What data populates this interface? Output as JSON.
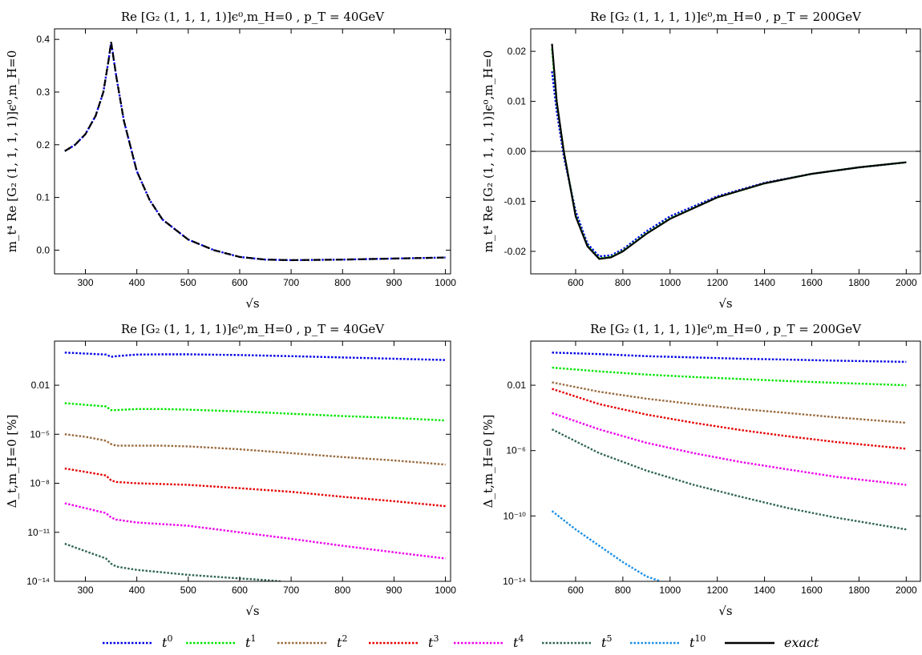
{
  "colors": {
    "t0": "#0000e6",
    "t1": "#00e600",
    "t2": "#9a6a3e",
    "t3": "#e60000",
    "t4": "#ee00ee",
    "t5": "#2f6650",
    "t10": "#1a8fe6",
    "exact": "#000000"
  },
  "legend": [
    {
      "key": "t0",
      "base": "t",
      "sup": "0",
      "style": "dotted"
    },
    {
      "key": "t1",
      "base": "t",
      "sup": "1",
      "style": "dotted"
    },
    {
      "key": "t2",
      "base": "t",
      "sup": "2",
      "style": "dotted"
    },
    {
      "key": "t3",
      "base": "t",
      "sup": "3",
      "style": "dotted"
    },
    {
      "key": "t4",
      "base": "t",
      "sup": "4",
      "style": "dotted"
    },
    {
      "key": "t5",
      "base": "t",
      "sup": "5",
      "style": "dotted"
    },
    {
      "key": "t10",
      "base": "t",
      "sup": "10",
      "style": "dotted"
    },
    {
      "key": "exact",
      "base": "exact",
      "sup": "",
      "style": "solid"
    }
  ],
  "chart_data": [
    {
      "type": "line",
      "title": "Re [G₂ (1, 1, 1, 1)]ϵ⁰,m_H=0 , p_T = 40GeV",
      "xlabel": "√s",
      "ylabel": "m_t⁴ Re [G₂ (1, 1, 1, 1)]ϵ⁰,m_H=0",
      "xlim": [
        240,
        1010
      ],
      "ylim": [
        -0.045,
        0.42
      ],
      "yscale": "linear",
      "xticks": [
        300,
        400,
        500,
        600,
        700,
        800,
        900,
        1000
      ],
      "yticks": [
        {
          "v": 0.0,
          "label": "0.0"
        },
        {
          "v": 0.1,
          "label": "0.1"
        },
        {
          "v": 0.2,
          "label": "0.2"
        },
        {
          "v": 0.3,
          "label": "0.3"
        },
        {
          "v": 0.4,
          "label": "0.4"
        }
      ],
      "series": [
        {
          "name": "exact",
          "x": [
            260,
            280,
            300,
            320,
            335,
            345,
            350,
            360,
            375,
            400,
            425,
            450,
            500,
            550,
            600,
            650,
            700,
            800,
            900,
            1000
          ],
          "y": [
            0.188,
            0.2,
            0.22,
            0.255,
            0.3,
            0.36,
            0.395,
            0.33,
            0.245,
            0.15,
            0.095,
            0.058,
            0.02,
            0.0,
            -0.013,
            -0.018,
            -0.019,
            -0.018,
            -0.016,
            -0.014
          ]
        },
        {
          "name": "t0",
          "x": [
            260,
            280,
            300,
            320,
            335,
            345,
            350,
            360,
            375,
            400,
            425,
            450,
            500,
            550,
            600,
            650,
            700,
            800,
            900,
            1000
          ],
          "y": [
            0.188,
            0.2,
            0.22,
            0.255,
            0.3,
            0.36,
            0.395,
            0.33,
            0.245,
            0.15,
            0.095,
            0.058,
            0.02,
            0.0,
            -0.013,
            -0.018,
            -0.019,
            -0.018,
            -0.016,
            -0.014
          ]
        }
      ]
    },
    {
      "type": "line",
      "title": "Re [G₂ (1, 1, 1, 1)]ϵ⁰,m_H=0 , p_T = 200GeV",
      "xlabel": "√s",
      "ylabel": "m_t⁴ Re [G₂ (1, 1, 1, 1)]ϵ⁰,m_H=0",
      "xlim": [
        410,
        2060
      ],
      "ylim": [
        -0.0245,
        0.0245
      ],
      "yscale": "linear",
      "xticks": [
        600,
        800,
        1000,
        1200,
        1400,
        1600,
        1800,
        2000
      ],
      "yticks": [
        {
          "v": -0.02,
          "label": "-0.02"
        },
        {
          "v": -0.01,
          "label": "-0.01"
        },
        {
          "v": 0.0,
          "label": "0.00"
        },
        {
          "v": 0.01,
          "label": "0.01"
        },
        {
          "v": 0.02,
          "label": "0.02"
        }
      ],
      "zero_line": true,
      "series": [
        {
          "name": "exact",
          "x": [
            500,
            520,
            550,
            600,
            650,
            700,
            750,
            800,
            900,
            1000,
            1200,
            1400,
            1600,
            1800,
            2000
          ],
          "y": [
            0.0215,
            0.01,
            0.0,
            -0.013,
            -0.019,
            -0.0215,
            -0.0212,
            -0.02,
            -0.0165,
            -0.0135,
            -0.0092,
            -0.0064,
            -0.0045,
            -0.0032,
            -0.0022
          ]
        },
        {
          "name": "t0",
          "x": [
            500,
            520,
            550,
            600,
            650,
            700,
            750,
            800,
            900,
            1000,
            1200,
            1400,
            1600,
            1800,
            2000
          ],
          "y": [
            0.016,
            0.008,
            -0.001,
            -0.012,
            -0.0185,
            -0.021,
            -0.0208,
            -0.0196,
            -0.016,
            -0.013,
            -0.009,
            -0.0063,
            -0.0045,
            -0.0032,
            -0.0022
          ]
        },
        {
          "name": "t1",
          "x": [
            500,
            520,
            550,
            600,
            650,
            700,
            750,
            800,
            900,
            1000,
            1200,
            1400,
            1600,
            1800,
            2000
          ],
          "y": [
            0.0205,
            0.0097,
            0.0,
            -0.0128,
            -0.0189,
            -0.0214,
            -0.0211,
            -0.0199,
            -0.0164,
            -0.0134,
            -0.0092,
            -0.0064,
            -0.0045,
            -0.0032,
            -0.0022
          ]
        }
      ]
    },
    {
      "type": "line",
      "title": "Re [G₂ (1, 1, 1, 1)]ϵ⁰,m_H=0 , p_T = 40GeV",
      "xlabel": "√s",
      "ylabel": "Δ_t,m_H=0 [%]",
      "xlim": [
        240,
        1010
      ],
      "ylim": [
        1e-14,
        5
      ],
      "yscale": "log",
      "xticks": [
        300,
        400,
        500,
        600,
        700,
        800,
        900,
        1000
      ],
      "yticks": [
        {
          "v": 1e-14,
          "label": "10⁻¹⁴"
        },
        {
          "v": 1e-11,
          "label": "10⁻¹¹"
        },
        {
          "v": 1e-08,
          "label": "10⁻⁸"
        },
        {
          "v": 1e-05,
          "label": "10⁻⁵"
        },
        {
          "v": 0.01,
          "label": "0.01"
        }
      ],
      "series": [
        {
          "name": "t0",
          "x": [
            260,
            340,
            350,
            360,
            400,
            450,
            500,
            600,
            700,
            800,
            900,
            1000
          ],
          "y": [
            1.0,
            0.75,
            0.55,
            0.6,
            0.75,
            0.78,
            0.78,
            0.7,
            0.6,
            0.5,
            0.42,
            0.35
          ]
        },
        {
          "name": "t1",
          "x": [
            260,
            340,
            350,
            360,
            400,
            450,
            500,
            600,
            700,
            800,
            900,
            1000
          ],
          "y": [
            0.0008,
            0.0005,
            0.0003,
            0.0003,
            0.00035,
            0.00035,
            0.00032,
            0.00025,
            0.00018,
            0.00013,
            0.0001,
            7e-05
          ]
        },
        {
          "name": "t2",
          "x": [
            260,
            300,
            340,
            350,
            360,
            400,
            450,
            500,
            600,
            700,
            800,
            900,
            1000
          ],
          "y": [
            1e-05,
            7e-06,
            4e-06,
            2.5e-06,
            2e-06,
            2e-06,
            2e-06,
            1.8e-06,
            1.2e-06,
            7e-07,
            4e-07,
            2.5e-07,
            1.4e-07
          ]
        },
        {
          "name": "t3",
          "x": [
            260,
            300,
            340,
            350,
            360,
            400,
            500,
            600,
            700,
            800,
            900,
            1000
          ],
          "y": [
            8e-08,
            5e-08,
            3e-08,
            1.5e-08,
            1.2e-08,
            1e-08,
            8e-09,
            5e-09,
            3e-09,
            1.5e-09,
            8e-10,
            4e-10
          ]
        },
        {
          "name": "t4",
          "x": [
            260,
            300,
            340,
            350,
            360,
            400,
            500,
            600,
            700,
            800,
            900,
            1000
          ],
          "y": [
            6e-10,
            3e-10,
            1.5e-10,
            8e-11,
            6e-11,
            4e-11,
            2.5e-11,
            1e-11,
            4e-12,
            1.5e-12,
            6e-13,
            2.5e-13
          ]
        },
        {
          "name": "t5",
          "x": [
            260,
            300,
            340,
            350,
            360,
            400,
            500,
            600,
            650,
            680
          ],
          "y": [
            2e-12,
            7e-13,
            2.5e-13,
            1.2e-13,
            8e-14,
            5e-14,
            2.5e-14,
            1.5e-14,
            1.2e-14,
            1e-14
          ]
        }
      ]
    },
    {
      "type": "line",
      "title": "Re [G₂ (1, 1, 1, 1)]ϵ⁰,m_H=0 , p_T = 200GeV",
      "xlabel": "√s",
      "ylabel": "Δ_t,m_H=0 [%]",
      "xlim": [
        410,
        2060
      ],
      "ylim": [
        1e-14,
        5
      ],
      "yscale": "log",
      "xticks": [
        600,
        800,
        1000,
        1200,
        1400,
        1600,
        1800,
        2000
      ],
      "yticks": [
        {
          "v": 1e-14,
          "label": "10⁻¹⁴"
        },
        {
          "v": 1e-10,
          "label": "10⁻¹⁰"
        },
        {
          "v": 1e-06,
          "label": "10⁻⁶"
        },
        {
          "v": 0.01,
          "label": "0.01"
        }
      ],
      "series": [
        {
          "name": "t0",
          "x": [
            500,
            700,
            900,
            1100,
            1300,
            1500,
            1700,
            2000
          ],
          "y": [
            1.0,
            0.8,
            0.6,
            0.5,
            0.42,
            0.37,
            0.32,
            0.27
          ]
        },
        {
          "name": "t1",
          "x": [
            500,
            700,
            900,
            1100,
            1300,
            1500,
            1700,
            2000
          ],
          "y": [
            0.12,
            0.07,
            0.045,
            0.032,
            0.024,
            0.018,
            0.014,
            0.01
          ]
        },
        {
          "name": "t2",
          "x": [
            500,
            700,
            900,
            1100,
            1300,
            1500,
            1700,
            2000
          ],
          "y": [
            0.015,
            0.004,
            0.0015,
            0.0007,
            0.00035,
            0.0002,
            0.00011,
            5e-05
          ]
        },
        {
          "name": "t3",
          "x": [
            500,
            700,
            900,
            1100,
            1300,
            1500,
            1700,
            2000
          ],
          "y": [
            0.006,
            0.0007,
            0.00016,
            5e-05,
            1.8e-05,
            7.5e-06,
            3.4e-06,
            1.3e-06
          ]
        },
        {
          "name": "t4",
          "x": [
            500,
            700,
            900,
            1100,
            1300,
            1500,
            1700,
            2000
          ],
          "y": [
            0.0002,
            2e-05,
            3e-06,
            7e-07,
            2e-07,
            7e-08,
            2.5e-08,
            8e-09
          ]
        },
        {
          "name": "t5",
          "x": [
            500,
            700,
            900,
            1100,
            1300,
            1500,
            1700,
            2000
          ],
          "y": [
            2e-05,
            7e-07,
            6e-08,
            8e-09,
            1.5e-09,
            3e-10,
            8e-11,
            1.5e-11
          ]
        },
        {
          "name": "t10",
          "x": [
            500,
            600,
            700,
            800,
            900,
            960
          ],
          "y": [
            2e-10,
            1.5e-11,
            1.5e-12,
            1.5e-13,
            2e-14,
            1e-14
          ]
        }
      ]
    }
  ]
}
